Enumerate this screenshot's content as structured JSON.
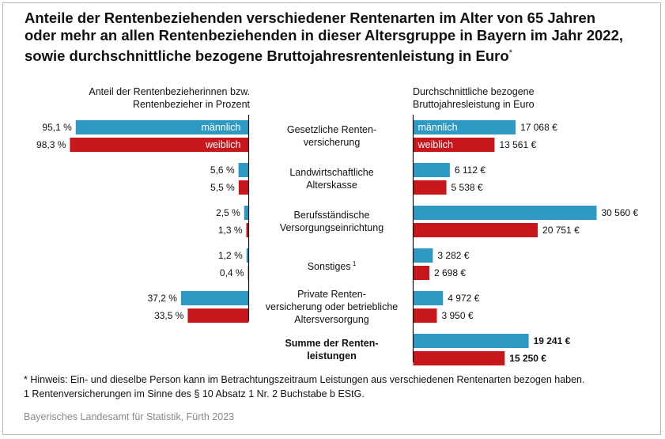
{
  "title_lines": [
    "Anteile der Rentenbeziehenden verschiedener Rentenarten im Alter von 65 Jahren",
    "oder mehr an allen Rentenbeziehenden in dieser Altersgruppe in Bayern im Jahr 2022,",
    "sowie durchschnittliche bezogene Bruttojahresrentenleistung in Euro"
  ],
  "title_mark": "*",
  "left_header": [
    "Anteil der Rentenbezieherinnen bzw.",
    "Rentenbezieher in Prozent"
  ],
  "right_header": [
    "Durchschnittliche bezogene",
    "Bruttojahresleistung in Euro"
  ],
  "colors": {
    "maennlich": "#2e9ac4",
    "weiblich": "#c8161d",
    "axis": "#111111"
  },
  "chart_data": {
    "type": "bar",
    "categories": [
      {
        "label": [
          "Gesetzliche Renten-",
          "versicherung"
        ],
        "bold": false,
        "footnote": ""
      },
      {
        "label": [
          "Landwirtschaftliche",
          "Alterskasse"
        ],
        "bold": false,
        "footnote": ""
      },
      {
        "label": [
          "Berufsständische",
          "Versorgungseinrichtung"
        ],
        "bold": false,
        "footnote": ""
      },
      {
        "label": [
          "Sonstiges"
        ],
        "bold": false,
        "footnote": "1"
      },
      {
        "label": [
          "Private Renten-",
          "versicherung oder betriebliche",
          "Altersversorgung"
        ],
        "bold": false,
        "footnote": ""
      },
      {
        "label": [
          "Summe der Renten-",
          "leistungen"
        ],
        "bold": true,
        "footnote": ""
      }
    ],
    "series_labels": [
      "männlich",
      "weiblich"
    ],
    "share_percent": {
      "maennlich": [
        95.1,
        5.6,
        2.5,
        1.2,
        37.2,
        null
      ],
      "weiblich": [
        98.3,
        5.5,
        1.3,
        0.4,
        33.5,
        null
      ]
    },
    "share_labels": {
      "maennlich": [
        "95,1 %",
        "5,6 %",
        "2,5 %",
        "1,2 %",
        "37,2 %",
        ""
      ],
      "weiblich": [
        "98,3 %",
        "5,5 %",
        "1,3 %",
        "0,4 %",
        "33,5 %",
        ""
      ]
    },
    "benefit_eur": {
      "maennlich": [
        17068,
        6112,
        30560,
        3282,
        4972,
        19241
      ],
      "weiblich": [
        13561,
        5538,
        20751,
        2698,
        3950,
        15250
      ]
    },
    "benefit_labels": {
      "maennlich": [
        "17 068 €",
        "6 112 €",
        "30 560 €",
        "3 282 €",
        "4 972 €",
        "19 241 €"
      ],
      "weiblich": [
        "13 561 €",
        "5 538 €",
        "20 751 €",
        "2 698 €",
        "3 950 €",
        "15 250 €"
      ]
    },
    "share_xlim": [
      0,
      100
    ],
    "benefit_xlim": [
      0,
      30560
    ]
  },
  "footnotes": [
    "* Hinweis: Ein- und dieselbe Person kann im Betrachtungszeitraum Leistungen aus verschiedenen Rentenarten bezogen haben.",
    "1 Rentenversicherungen im Sinne des § 10 Absatz 1 Nr. 2 Buchstabe b EStG."
  ],
  "source": "Bayerisches Landesamt für Statistik, Fürth 2023"
}
